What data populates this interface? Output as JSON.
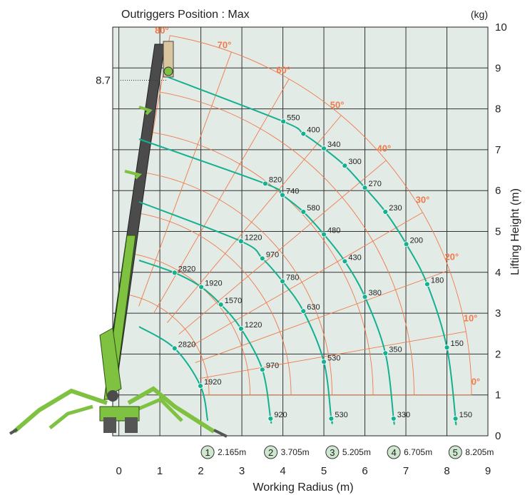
{
  "chart_data": {
    "type": "load-chart",
    "title": "Outriggers Position : Max",
    "unit_label": "(kg)",
    "x_label": "Working Radius (m)",
    "y_label": "Lifting Height (m)",
    "xlim": [
      -0.15,
      9
    ],
    "ylim": [
      0,
      10
    ],
    "xticks": [
      0,
      1,
      2,
      3,
      4,
      5,
      6,
      7,
      8,
      9
    ],
    "yticks": [
      0,
      1,
      2,
      3,
      4,
      5,
      6,
      7,
      8,
      9,
      10
    ],
    "grid": true,
    "max_height": 8.7,
    "angles": [
      {
        "value": 0,
        "label": "0°"
      },
      {
        "value": 10,
        "label": "10°"
      },
      {
        "value": 20,
        "label": "20°"
      },
      {
        "value": 30,
        "label": "30°"
      },
      {
        "value": 40,
        "label": "40°"
      },
      {
        "value": 50,
        "label": "50°"
      },
      {
        "value": 60,
        "label": "60°"
      },
      {
        "value": 70,
        "label": "70°"
      },
      {
        "value": 80,
        "label": "80°"
      }
    ],
    "series": [
      {
        "name": "1",
        "radius": {
          "value": 2.165,
          "label": "2.165m"
        },
        "color": "#14b08f",
        "points": [
          {
            "x": 1.36,
            "y": 2.14,
            "value": 2820
          },
          {
            "x": 1.99,
            "y": 1.22,
            "value": 1920
          }
        ]
      },
      {
        "name": "2",
        "radius": {
          "value": 3.705,
          "label": "3.705m"
        },
        "color": "#14b08f",
        "points": [
          {
            "x": 1.36,
            "y": 3.99,
            "value": 2820
          },
          {
            "x": 2.01,
            "y": 3.64,
            "value": 1920
          },
          {
            "x": 2.49,
            "y": 3.21,
            "value": 1570
          },
          {
            "x": 2.98,
            "y": 2.62,
            "value": 1220
          },
          {
            "x": 3.5,
            "y": 1.62,
            "value": 970
          },
          {
            "x": 3.7,
            "y": 0.42,
            "value": 920
          }
        ]
      },
      {
        "name": "3",
        "radius": {
          "value": 5.205,
          "label": "5.205m"
        },
        "color": "#14b08f",
        "points": [
          {
            "x": 2.98,
            "y": 4.76,
            "value": 1220
          },
          {
            "x": 3.5,
            "y": 4.34,
            "value": 970
          },
          {
            "x": 3.99,
            "y": 3.78,
            "value": 780
          },
          {
            "x": 4.5,
            "y": 3.05,
            "value": 630
          },
          {
            "x": 5.0,
            "y": 1.81,
            "value": 530
          },
          {
            "x": 5.18,
            "y": 0.42,
            "value": 530
          }
        ]
      },
      {
        "name": "4",
        "radius": {
          "value": 6.705,
          "label": "6.705m"
        },
        "color": "#14b08f",
        "points": [
          {
            "x": 3.57,
            "y": 6.17,
            "value": 820
          },
          {
            "x": 3.99,
            "y": 5.89,
            "value": 740
          },
          {
            "x": 4.5,
            "y": 5.48,
            "value": 580
          },
          {
            "x": 5.0,
            "y": 4.93,
            "value": 480
          },
          {
            "x": 5.51,
            "y": 4.27,
            "value": 430
          },
          {
            "x": 6.0,
            "y": 3.4,
            "value": 380
          },
          {
            "x": 6.5,
            "y": 2.02,
            "value": 350
          },
          {
            "x": 6.7,
            "y": 0.42,
            "value": 330
          }
        ]
      },
      {
        "name": "5",
        "radius": {
          "value": 8.205,
          "label": "8.205m"
        },
        "color": "#14b08f",
        "points": [
          {
            "x": 4.01,
            "y": 7.69,
            "value": 550
          },
          {
            "x": 4.5,
            "y": 7.39,
            "value": 400
          },
          {
            "x": 5.0,
            "y": 7.03,
            "value": 340
          },
          {
            "x": 5.51,
            "y": 6.61,
            "value": 300
          },
          {
            "x": 6.0,
            "y": 6.07,
            "value": 270
          },
          {
            "x": 6.5,
            "y": 5.48,
            "value": 230
          },
          {
            "x": 7.01,
            "y": 4.69,
            "value": 200
          },
          {
            "x": 7.52,
            "y": 3.71,
            "value": 180
          },
          {
            "x": 8.0,
            "y": 2.16,
            "value": 150
          },
          {
            "x": 8.21,
            "y": 0.42,
            "value": 150
          }
        ]
      }
    ]
  }
}
